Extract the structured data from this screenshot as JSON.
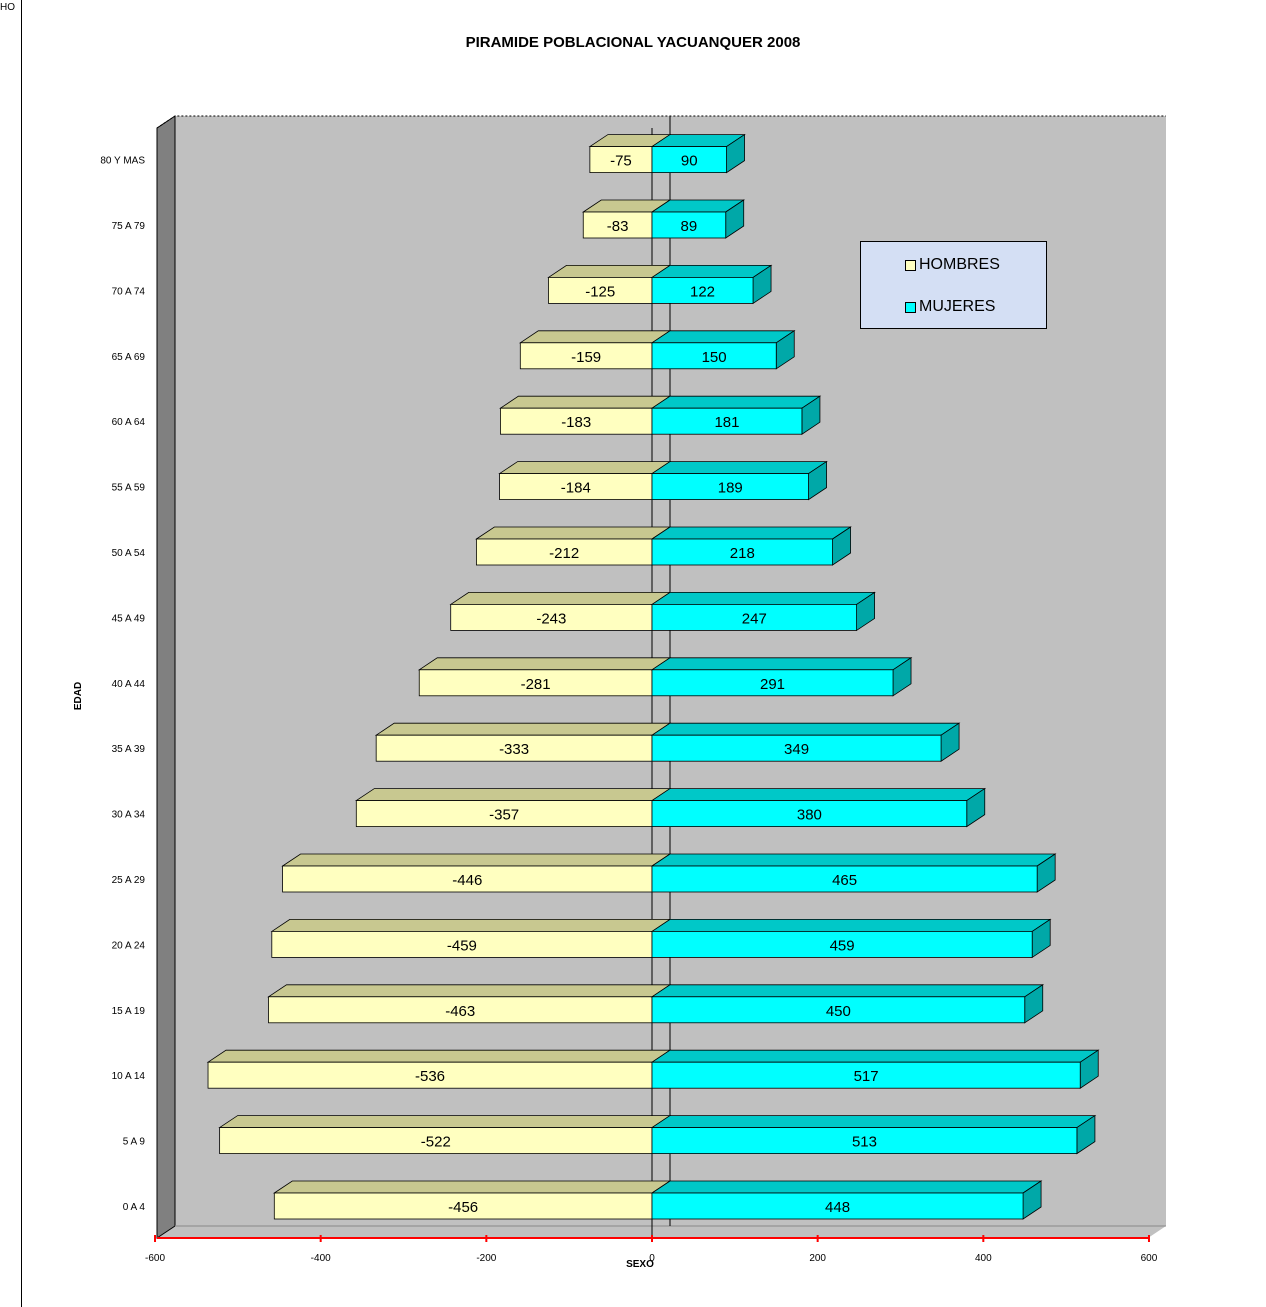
{
  "corner_text": "HO",
  "chart_data": {
    "type": "bar",
    "orientation": "horizontal",
    "stacked": true,
    "style": "3d",
    "title": "PIRAMIDE POBLACIONAL YACUANQUER 2008",
    "xlabel": "SEXO",
    "ylabel": "EDAD",
    "xlim": [
      -600,
      600
    ],
    "x_ticks": [
      -600,
      -400,
      -200,
      0,
      200,
      400,
      600
    ],
    "x_tick_labels": [
      "-600",
      "-400",
      "-200",
      "0",
      "200",
      "400",
      "600"
    ],
    "legend_position": "upper-right",
    "categories": [
      "0  A  4",
      "5  A  9",
      "10  A  14",
      "15  A  19",
      "20  A  24",
      "25  A  29",
      "30  A  34",
      "35  A  39",
      "40  A  44",
      "45  A  49",
      "50  A  54",
      "55  A  59",
      "60  A  64",
      "65  A  69",
      "70  A  74",
      "75  A  79",
      "80 Y MAS"
    ],
    "series": [
      {
        "name": "HOMBRES",
        "color": "#ffffc0",
        "values": [
          -456,
          -522,
          -536,
          -463,
          -459,
          -446,
          -357,
          -333,
          -281,
          -243,
          -212,
          -184,
          -183,
          -159,
          -125,
          -83,
          -75
        ]
      },
      {
        "name": "MUJERES",
        "color": "#00ffff",
        "values": [
          448,
          513,
          517,
          450,
          459,
          465,
          380,
          349,
          291,
          247,
          218,
          189,
          181,
          150,
          122,
          89,
          90
        ]
      }
    ],
    "colors": {
      "plot_background": "#c0c0c0",
      "side_wall": "#808080",
      "x_axis_line": "#ff0000"
    }
  }
}
